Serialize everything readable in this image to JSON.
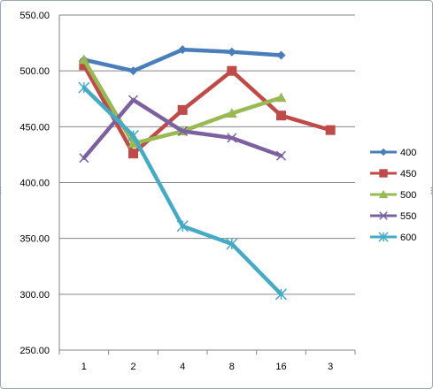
{
  "chart_data": {
    "type": "line",
    "categories": [
      "1",
      "2",
      "4",
      "8",
      "16",
      "3"
    ],
    "ylim": [
      250,
      550
    ],
    "y_ticks": [
      "250.00",
      "300.00",
      "350.00",
      "400.00",
      "450.00",
      "500.00",
      "550.00"
    ],
    "grid": "horizontal",
    "legend_position": "right",
    "series": [
      {
        "name": "400",
        "color": "#4a7ebb",
        "marker": "diamond",
        "values": [
          510,
          500,
          519,
          517,
          514,
          null
        ]
      },
      {
        "name": "450",
        "color": "#be4b48",
        "marker": "square",
        "values": [
          505,
          426,
          465,
          500,
          460,
          447
        ]
      },
      {
        "name": "500",
        "color": "#98b954",
        "marker": "triangle",
        "values": [
          510,
          435,
          446,
          462,
          476,
          null
        ]
      },
      {
        "name": "550",
        "color": "#7d60a0",
        "marker": "x",
        "values": [
          422,
          474,
          446,
          440,
          424,
          null
        ]
      },
      {
        "name": "600",
        "color": "#46aac5",
        "marker": "star",
        "values": [
          485,
          442,
          361,
          345,
          300,
          null
        ]
      }
    ]
  }
}
